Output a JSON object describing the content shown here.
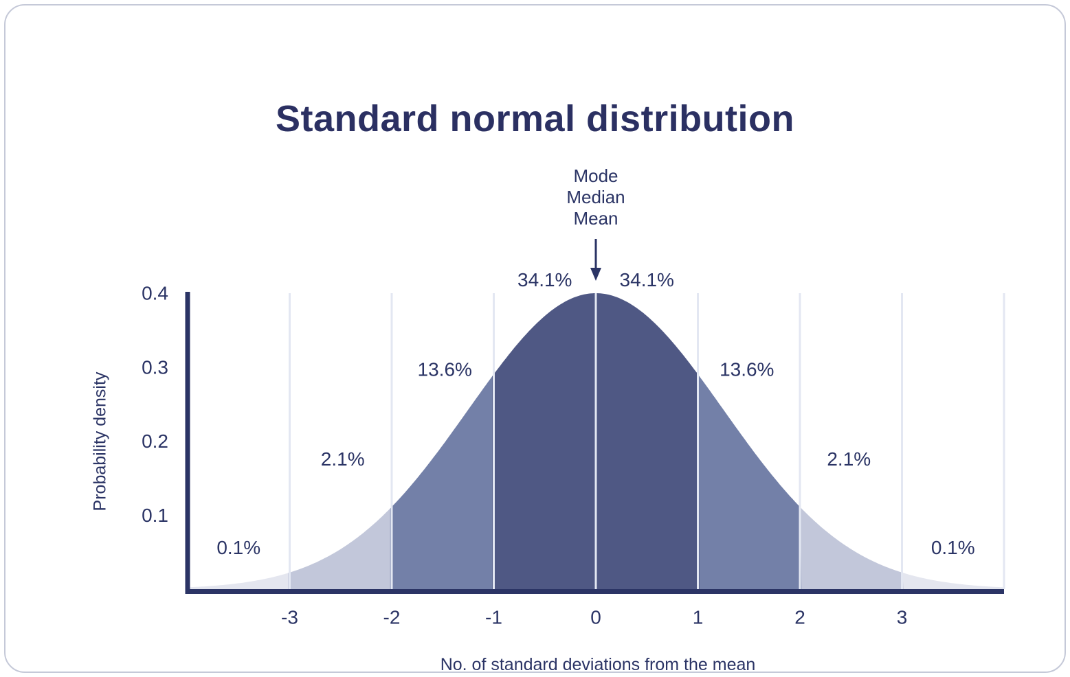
{
  "chart_data": {
    "type": "area",
    "title": "Standard normal distribution",
    "xlabel": "No. of standard deviations from the mean",
    "ylabel": "Probability density",
    "x_ticks": [
      -3,
      -2,
      -1,
      0,
      1,
      2,
      3
    ],
    "y_ticks": [
      0.1,
      0.2,
      0.3,
      0.4
    ],
    "xlim": [
      -4,
      4
    ],
    "ylim": [
      0,
      0.4
    ],
    "curve": "gaussian",
    "peak_density": 0.4,
    "display_sigma": 1.25,
    "grid": "vertical lines at each integer standard deviation, light on dark fills",
    "legend": "none",
    "annotation": {
      "lines": [
        "Mode",
        "Median",
        "Mean"
      ],
      "arrow_target_sigma": 0
    },
    "bands": [
      {
        "sigma_range": [
          -4,
          -3
        ],
        "percent": "0.1%",
        "color": "#e4e6ef",
        "label_sigma": -3.5,
        "label_value": 0.056
      },
      {
        "sigma_range": [
          -3,
          -2
        ],
        "percent": "2.1%",
        "color": "#c2c7da",
        "label_sigma": -2.48,
        "label_value": 0.176
      },
      {
        "sigma_range": [
          -2,
          -1
        ],
        "percent": "13.6%",
        "color": "#7380a8",
        "label_sigma": -1.48,
        "label_value": 0.297
      },
      {
        "sigma_range": [
          -1,
          0
        ],
        "percent": "34.1%",
        "color": "#4f5884",
        "label_sigma": -0.5,
        "label_value": 0.418
      },
      {
        "sigma_range": [
          0,
          1
        ],
        "percent": "34.1%",
        "color": "#4f5884",
        "label_sigma": 0.5,
        "label_value": 0.418
      },
      {
        "sigma_range": [
          1,
          2
        ],
        "percent": "13.6%",
        "color": "#7380a8",
        "label_sigma": 1.48,
        "label_value": 0.297
      },
      {
        "sigma_range": [
          2,
          3
        ],
        "percent": "2.1%",
        "color": "#c2c7da",
        "label_sigma": 2.48,
        "label_value": 0.176
      },
      {
        "sigma_range": [
          3,
          4
        ],
        "percent": "0.1%",
        "color": "#e4e6ef",
        "label_sigma": 3.5,
        "label_value": 0.056
      }
    ],
    "colors": {
      "text": "#2b3465",
      "title_text": "#2b3062",
      "axis": "#2b3465",
      "gridline": "#e3e7f2",
      "card_border": "#c5c9d8",
      "background": "#ffffff"
    }
  }
}
